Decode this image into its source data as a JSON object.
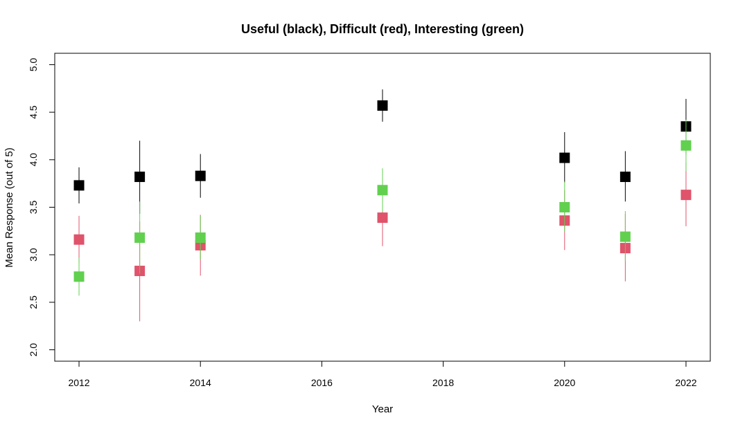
{
  "chart_data": {
    "type": "scatter",
    "title": "Useful (black), Difficult (red), Interesting (green)",
    "xlabel": "Year",
    "ylabel": "Mean Response (out of 5)",
    "xlim": [
      2011.6,
      2022.4
    ],
    "ylim": [
      1.88,
      5.12
    ],
    "xticks": [
      "2012",
      "2014",
      "2016",
      "2018",
      "2020",
      "2022"
    ],
    "yticks": [
      "2.0",
      "2.5",
      "3.0",
      "3.5",
      "4.0",
      "4.5",
      "5.0"
    ],
    "grid": false,
    "series": [
      {
        "color": "#000000",
        "points": [
          {
            "x": 2012,
            "y": 3.73,
            "lo": 3.54,
            "hi": 3.92
          },
          {
            "x": 2013,
            "y": 3.82,
            "lo": 3.43,
            "hi": 4.2
          },
          {
            "x": 2014,
            "y": 3.83,
            "lo": 3.6,
            "hi": 4.06
          },
          {
            "x": 2017,
            "y": 4.57,
            "lo": 4.4,
            "hi": 4.74
          },
          {
            "x": 2020,
            "y": 4.02,
            "lo": 3.76,
            "hi": 4.29
          },
          {
            "x": 2021,
            "y": 3.82,
            "lo": 3.56,
            "hi": 4.09
          },
          {
            "x": 2022,
            "y": 4.35,
            "lo": 4.06,
            "hi": 4.64
          }
        ]
      },
      {
        "color": "#DF536B",
        "points": [
          {
            "x": 2012,
            "y": 3.16,
            "lo": 2.91,
            "hi": 3.41
          },
          {
            "x": 2013,
            "y": 2.83,
            "lo": 2.3,
            "hi": 3.35
          },
          {
            "x": 2014,
            "y": 3.1,
            "lo": 2.78,
            "hi": 3.42
          },
          {
            "x": 2017,
            "y": 3.39,
            "lo": 3.09,
            "hi": 3.69
          },
          {
            "x": 2020,
            "y": 3.36,
            "lo": 3.05,
            "hi": 3.68
          },
          {
            "x": 2021,
            "y": 3.07,
            "lo": 2.72,
            "hi": 3.43
          },
          {
            "x": 2022,
            "y": 3.63,
            "lo": 3.3,
            "hi": 3.97
          }
        ]
      },
      {
        "color": "#61D04F",
        "points": [
          {
            "x": 2012,
            "y": 2.77,
            "lo": 2.57,
            "hi": 2.97
          },
          {
            "x": 2013,
            "y": 3.18,
            "lo": 2.8,
            "hi": 3.56
          },
          {
            "x": 2014,
            "y": 3.18,
            "lo": 2.95,
            "hi": 3.41
          },
          {
            "x": 2017,
            "y": 3.68,
            "lo": 3.45,
            "hi": 3.91
          },
          {
            "x": 2020,
            "y": 3.5,
            "lo": 3.24,
            "hi": 3.77
          },
          {
            "x": 2021,
            "y": 3.19,
            "lo": 2.93,
            "hi": 3.46
          },
          {
            "x": 2022,
            "y": 4.15,
            "lo": 3.88,
            "hi": 4.42
          }
        ]
      }
    ]
  }
}
